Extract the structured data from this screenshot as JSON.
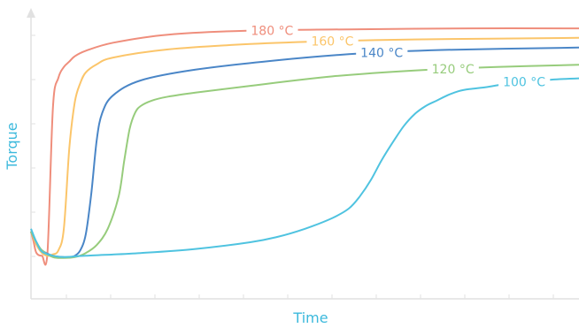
{
  "chart_data": {
    "type": "line",
    "title": "",
    "xlabel": "Time",
    "ylabel": "Torque",
    "grid": false,
    "legend": "inline-labels",
    "xlim": [
      0,
      100
    ],
    "ylim": [
      0,
      100
    ],
    "series": [
      {
        "name": "180 °C",
        "color": "#ef8e7c",
        "label_at": 44,
        "x": [
          0,
          0.5,
          1,
          2,
          3,
          4,
          5,
          6,
          7,
          8,
          10,
          15,
          25,
          40,
          60,
          80,
          100
        ],
        "y": [
          24,
          20,
          16,
          15,
          16,
          70,
          81,
          85,
          87,
          89,
          91,
          94,
          97,
          98.5,
          99,
          99.3,
          99.3
        ]
      },
      {
        "name": "160 °C",
        "color": "#fbc56a",
        "label_at": 55,
        "x": [
          0,
          1,
          2,
          3,
          4,
          5,
          6,
          7,
          8,
          9,
          10,
          12,
          15,
          25,
          40,
          55,
          70,
          100
        ],
        "y": [
          24,
          19,
          16,
          15,
          15.5,
          17,
          25,
          55,
          72,
          79,
          83,
          86,
          88.5,
          91.5,
          93.5,
          94.6,
          95.2,
          95.8
        ]
      },
      {
        "name": "140 °C",
        "color": "#4a86c7",
        "label_at": 64,
        "x": [
          0,
          1,
          2,
          4,
          6,
          7,
          8,
          9,
          10,
          11,
          12,
          13,
          15,
          20,
          30,
          45,
          60,
          75,
          100
        ],
        "y": [
          24,
          20,
          17,
          15,
          14.5,
          14.5,
          15,
          17,
          23,
          38,
          58,
          68,
          74.5,
          80,
          84,
          87.5,
          90,
          91.3,
          92.2
        ]
      },
      {
        "name": "120 °C",
        "color": "#97cc7c",
        "label_at": 77,
        "x": [
          0,
          1,
          2,
          4,
          6,
          8,
          10,
          12,
          14,
          16,
          17,
          18,
          19,
          20,
          22,
          25,
          30,
          40,
          55,
          70,
          85,
          100
        ],
        "y": [
          24,
          20,
          17,
          14.5,
          14.2,
          14.5,
          16,
          19,
          25,
          37,
          50,
          62,
          68,
          70.5,
          72.5,
          74,
          75.5,
          78,
          81.5,
          83.7,
          85,
          85.8
        ]
      },
      {
        "name": "100 °C",
        "color": "#4fc3e0",
        "label_at": 90,
        "x": [
          0,
          1,
          2,
          4,
          6,
          10,
          20,
          30,
          40,
          45,
          50,
          55,
          58,
          60,
          62,
          64,
          66,
          68,
          70,
          72,
          74,
          76,
          78,
          80,
          83,
          86,
          90,
          95,
          100
        ],
        "y": [
          25,
          20,
          16.5,
          15,
          14.5,
          15,
          16,
          17.5,
          20,
          22,
          25,
          29,
          32.5,
          37,
          43,
          50.5,
          57,
          63,
          67.5,
          70.5,
          72.5,
          74.5,
          76,
          76.8,
          77.5,
          78.5,
          79.5,
          80.3,
          80.8
        ]
      }
    ]
  }
}
